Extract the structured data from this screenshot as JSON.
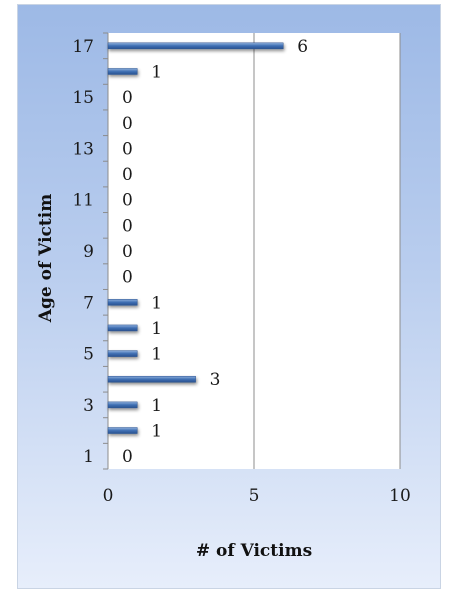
{
  "chart_data": {
    "type": "bar",
    "orientation": "horizontal",
    "title": "",
    "xlabel": "# of Victims",
    "ylabel": "Age of Victim",
    "categories": [
      "1",
      "2",
      "3",
      "4",
      "5",
      "6",
      "7",
      "8",
      "9",
      "10",
      "11",
      "12",
      "13",
      "14",
      "15",
      "16",
      "17"
    ],
    "y_tick_labels": [
      "1",
      "3",
      "5",
      "7",
      "9",
      "11",
      "13",
      "15",
      "17"
    ],
    "series": [
      {
        "values": [
          0,
          1,
          1,
          3,
          1,
          1,
          1,
          0,
          0,
          0,
          0,
          0,
          0,
          0,
          0,
          1,
          6
        ]
      }
    ],
    "xlim": [
      0,
      10
    ],
    "x_ticks": [
      0,
      5,
      10
    ],
    "grid": "vertical-major",
    "legend": "none",
    "colors": {
      "bar": "#3f6fb3",
      "bar_light": "#7fa3d6",
      "grid": "#8c8c8c",
      "axis": "#8c8c8c",
      "plot_bg": "#ffffff"
    }
  }
}
